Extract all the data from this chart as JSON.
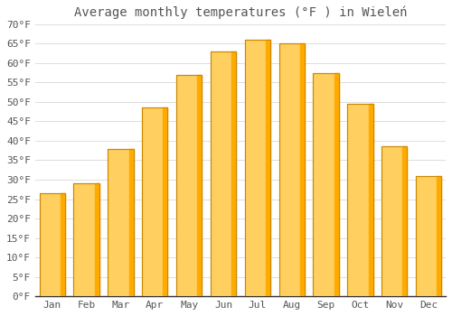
{
  "title": "Average monthly temperatures (°F ) in Wieleń",
  "months": [
    "Jan",
    "Feb",
    "Mar",
    "Apr",
    "May",
    "Jun",
    "Jul",
    "Aug",
    "Sep",
    "Oct",
    "Nov",
    "Dec"
  ],
  "values": [
    26.5,
    29.0,
    38.0,
    48.5,
    57.0,
    63.0,
    66.0,
    65.0,
    57.5,
    49.5,
    38.5,
    31.0
  ],
  "bar_color_main": "#FFAA00",
  "bar_color_light": "#FFD060",
  "bar_edge_color": "#CC8800",
  "background_color": "#FFFFFF",
  "grid_color": "#DDDDDD",
  "text_color": "#555555",
  "axis_color": "#333333",
  "ylim": [
    0,
    70
  ],
  "ytick_step": 5,
  "title_fontsize": 10,
  "tick_fontsize": 8
}
